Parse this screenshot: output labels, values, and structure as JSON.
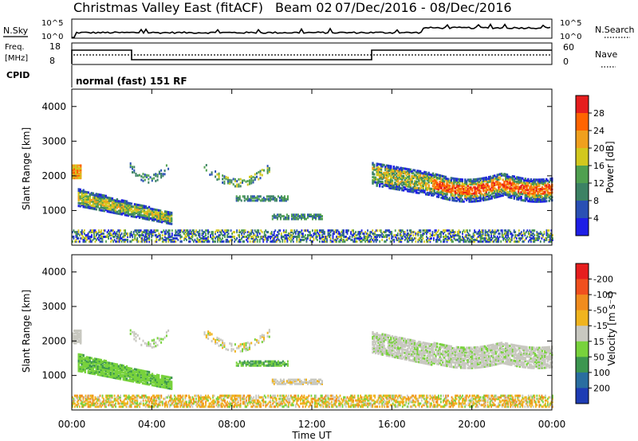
{
  "header": {
    "station": "Christmas Valley East (fitACF)",
    "beam": "Beam 02",
    "dates": "07/Dec/2016 - 08/Dec/2016"
  },
  "status_panels": {
    "nsky_label": "N.Sky",
    "nsky_scale": [
      "10^5",
      "10^0"
    ],
    "nsearch_label": "N.Search",
    "nsearch_scale": [
      "10^5",
      "10^0"
    ],
    "freq_label_1": "Freq.",
    "freq_label_2": "[MHz]",
    "freq_scale": [
      "18",
      "8"
    ],
    "nave_label": "Nave",
    "nave_scale": [
      "60",
      "0"
    ],
    "cpid_label": "CPID",
    "cpid_value": "normal (fast) 151 RF"
  },
  "chart_data": [
    {
      "type": "heatmap",
      "name": "power",
      "ylabel": "Slant Range [km]",
      "xlabel": "Time UT",
      "ylim": [
        0,
        4500
      ],
      "yticks": [
        "1000",
        "2000",
        "3000",
        "4000"
      ],
      "xticks": [
        "00:00",
        "04:00",
        "08:00",
        "12:00",
        "16:00",
        "20:00",
        "00:00"
      ],
      "colorbar": {
        "label": "Power [dB]",
        "ticks": [
          "4",
          "8",
          "12",
          "16",
          "20",
          "24",
          "28"
        ],
        "colors": [
          "#1e1ee6",
          "#2a50b4",
          "#3c8264",
          "#50a050",
          "#d2c81e",
          "#f0a01e",
          "#ff6400",
          "#e61e1e"
        ]
      },
      "features": [
        {
          "region": "early evening band",
          "time_h": [
            0.2,
            5
          ],
          "range_km": [
            750,
            1700
          ],
          "level_db": 14
        },
        {
          "region": "midnight arc",
          "time_h": [
            3,
            4.7
          ],
          "range_km": [
            1700,
            2400
          ],
          "level_db": 10
        },
        {
          "region": "late night arc",
          "time_h": [
            6.5,
            10
          ],
          "range_km": [
            1750,
            2400
          ],
          "level_db": 12
        },
        {
          "region": "dawn ionospheric band",
          "time_h": [
            15,
            24
          ],
          "range_km": [
            1100,
            2400
          ],
          "level_db": 24
        }
      ]
    },
    {
      "type": "heatmap",
      "name": "velocity",
      "ylabel": "Slant Range [km]",
      "xlabel": "Time UT",
      "ylim": [
        0,
        4500
      ],
      "yticks": [
        "1000",
        "2000",
        "3000",
        "4000"
      ],
      "xticks": [
        "00:00",
        "04:00",
        "08:00",
        "12:00",
        "16:00",
        "20:00",
        "00:00"
      ],
      "colorbar": {
        "label": "Velocity [m s⁻¹]",
        "ticks": [
          "200",
          "100",
          "50",
          "15",
          "-15",
          "-50",
          "-100",
          "-200"
        ],
        "colors": [
          "#1e3cb4",
          "#2a6ea0",
          "#3c9650",
          "#78d23c",
          "#c8c8c0",
          "#f0b41e",
          "#f08c1e",
          "#f0501e",
          "#e61e1e"
        ]
      },
      "features": [
        {
          "region": "early evening band",
          "time_h": [
            0.2,
            5
          ],
          "range_km": [
            750,
            1700
          ],
          "velocity": 30
        },
        {
          "region": "ground scatter",
          "time_h": [
            15,
            24
          ],
          "range_km": [
            1100,
            2300
          ],
          "velocity": 0
        },
        {
          "region": "near-range E region",
          "time_h": [
            0,
            24
          ],
          "range_km": [
            150,
            400
          ],
          "velocity": -40
        }
      ]
    }
  ]
}
